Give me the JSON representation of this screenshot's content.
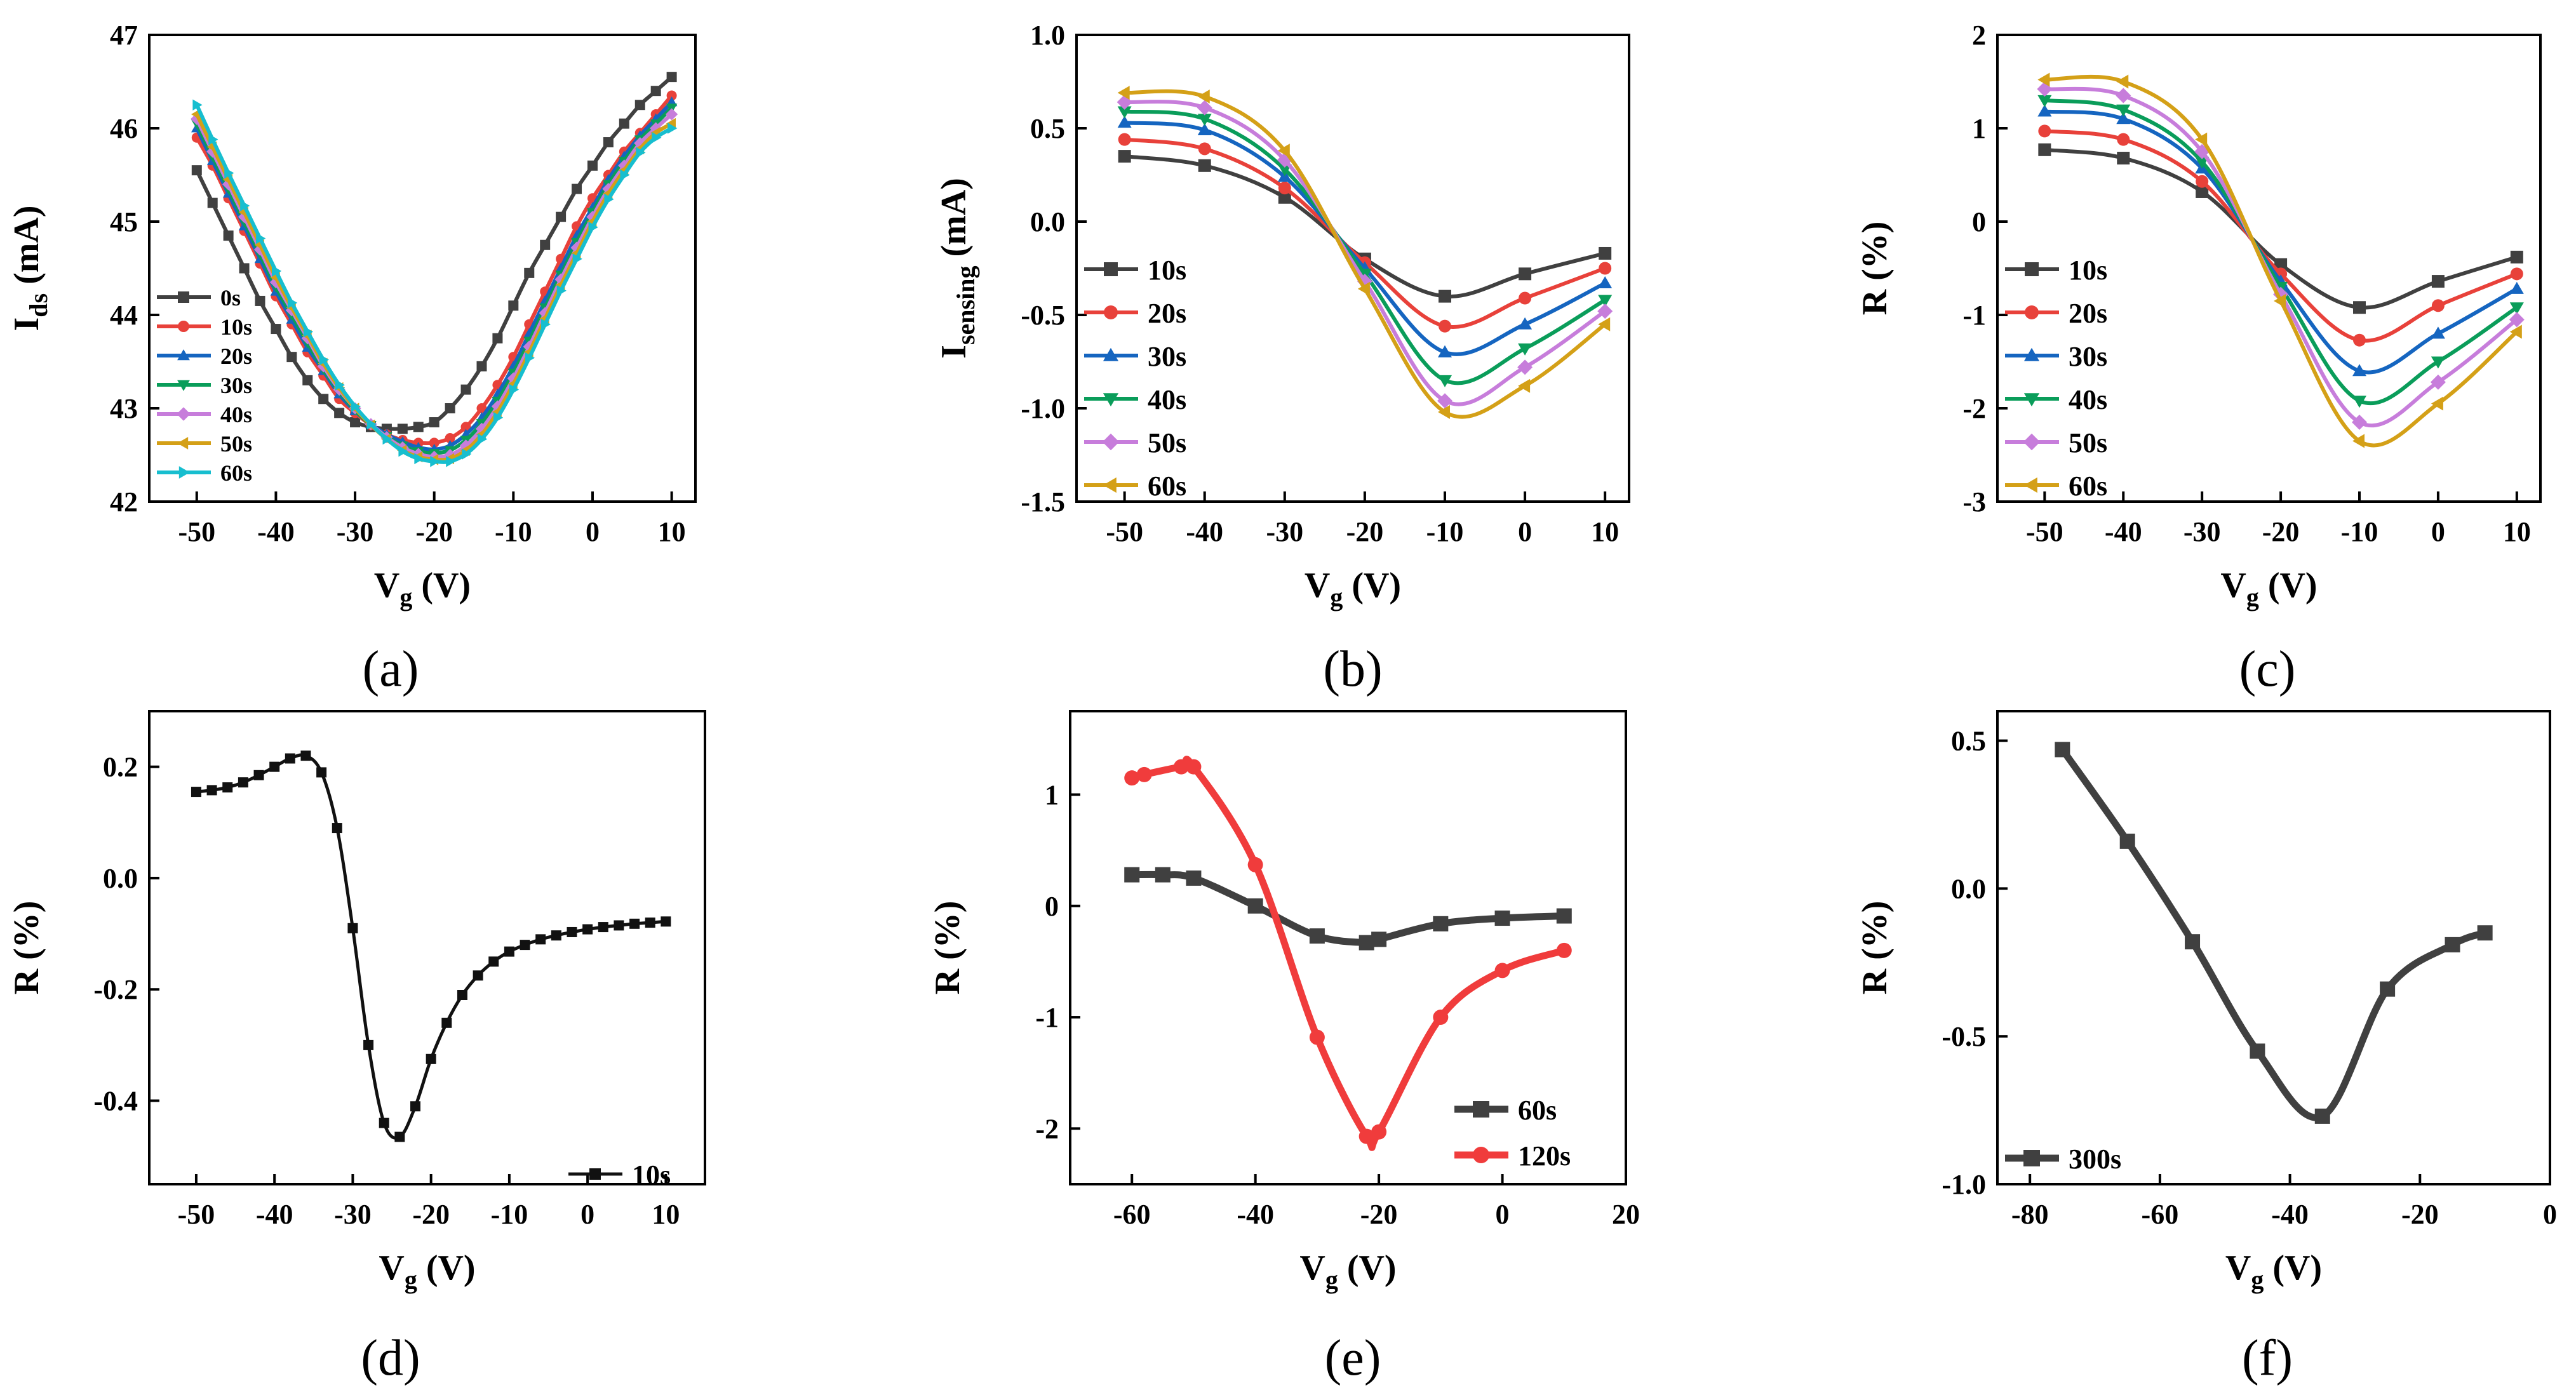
{
  "chart_data": [
    {
      "id": "a",
      "type": "line",
      "panel_label": "(a)",
      "xlabel": "V",
      "xlabel_sub": "g",
      "xlabel_unit": " (V)",
      "ylabel": "I",
      "ylabel_sub": "ds",
      "ylabel_unit": " (mA)",
      "xlim": [
        -56,
        13
      ],
      "ylim": [
        42,
        47
      ],
      "xticks": [
        -50,
        -40,
        -30,
        -20,
        -10,
        0,
        10
      ],
      "yticks": [
        42,
        43,
        44,
        45,
        46,
        47
      ],
      "legend": "left",
      "x": [
        -50,
        -48,
        -46,
        -44,
        -42,
        -40,
        -38,
        -36,
        -34,
        -32,
        -30,
        -28,
        -26,
        -24,
        -22,
        -20,
        -18,
        -16,
        -14,
        -12,
        -10,
        -8,
        -6,
        -4,
        -2,
        0,
        2,
        4,
        6,
        8,
        10
      ],
      "series": [
        {
          "name": "0s",
          "color": "#404040",
          "marker": "square",
          "values": [
            45.55,
            45.2,
            44.85,
            44.5,
            44.15,
            43.85,
            43.55,
            43.3,
            43.1,
            42.95,
            42.85,
            42.8,
            42.78,
            42.78,
            42.8,
            42.85,
            43.0,
            43.2,
            43.45,
            43.75,
            44.1,
            44.45,
            44.75,
            45.05,
            45.35,
            45.6,
            45.85,
            46.05,
            46.25,
            46.4,
            46.55
          ]
        },
        {
          "name": "10s",
          "color": "#e8413a",
          "marker": "circle",
          "values": [
            45.9,
            45.6,
            45.25,
            44.9,
            44.55,
            44.2,
            43.9,
            43.6,
            43.35,
            43.1,
            42.95,
            42.82,
            42.72,
            42.66,
            42.63,
            42.63,
            42.68,
            42.8,
            43.0,
            43.25,
            43.55,
            43.9,
            44.25,
            44.6,
            44.95,
            45.25,
            45.5,
            45.75,
            45.95,
            46.15,
            46.35
          ]
        },
        {
          "name": "20s",
          "color": "#1565c0",
          "marker": "triangle-up",
          "values": [
            46.0,
            45.65,
            45.3,
            44.95,
            44.6,
            44.25,
            43.95,
            43.65,
            43.4,
            43.15,
            42.97,
            42.83,
            42.72,
            42.64,
            42.58,
            42.56,
            42.6,
            42.72,
            42.9,
            43.15,
            43.45,
            43.8,
            44.15,
            44.5,
            44.85,
            45.15,
            45.45,
            45.7,
            45.92,
            46.1,
            46.28
          ]
        },
        {
          "name": "30s",
          "color": "#0a9d5a",
          "marker": "triangle-down",
          "values": [
            46.05,
            45.7,
            45.35,
            45.0,
            44.65,
            44.3,
            44.0,
            43.7,
            43.42,
            43.18,
            42.98,
            42.82,
            42.7,
            42.6,
            42.54,
            42.52,
            42.55,
            42.66,
            42.84,
            43.08,
            43.38,
            43.72,
            44.08,
            44.43,
            44.78,
            45.1,
            45.4,
            45.65,
            45.88,
            46.05,
            46.22
          ]
        },
        {
          "name": "40s",
          "color": "#c77ddb",
          "marker": "diamond",
          "values": [
            46.1,
            45.75,
            45.4,
            45.05,
            44.7,
            44.35,
            44.05,
            43.75,
            43.45,
            43.2,
            43.0,
            42.83,
            42.69,
            42.58,
            42.51,
            42.48,
            42.5,
            42.6,
            42.78,
            43.02,
            43.32,
            43.66,
            44.02,
            44.38,
            44.72,
            45.05,
            45.35,
            45.6,
            45.84,
            46.0,
            46.15
          ]
        },
        {
          "name": "50s",
          "color": "#d4a017",
          "marker": "triangle-left",
          "values": [
            46.15,
            45.8,
            45.45,
            45.1,
            44.75,
            44.4,
            44.08,
            43.78,
            43.48,
            43.22,
            43.0,
            42.82,
            42.67,
            42.55,
            42.48,
            42.45,
            42.46,
            42.55,
            42.72,
            42.96,
            43.26,
            43.6,
            43.96,
            44.32,
            44.66,
            45.0,
            45.3,
            45.55,
            45.78,
            45.95,
            46.05
          ]
        },
        {
          "name": "60s",
          "color": "#17becf",
          "marker": "triangle-right",
          "values": [
            46.25,
            45.88,
            45.52,
            45.17,
            44.82,
            44.47,
            44.13,
            43.82,
            43.52,
            43.25,
            43.02,
            42.83,
            42.67,
            42.54,
            42.46,
            42.43,
            42.43,
            42.51,
            42.67,
            42.9,
            43.2,
            43.54,
            43.9,
            44.26,
            44.6,
            44.94,
            45.24,
            45.5,
            45.74,
            45.9,
            46.0
          ]
        }
      ]
    },
    {
      "id": "b",
      "type": "line",
      "panel_label": "(b)",
      "xlabel": "V",
      "xlabel_sub": "g",
      "xlabel_unit": " (V)",
      "ylabel": "I",
      "ylabel_sub": "sensing",
      "ylabel_unit": " (mA)",
      "xlim": [
        -56,
        13
      ],
      "ylim": [
        -1.5,
        1.0
      ],
      "xticks": [
        -50,
        -40,
        -30,
        -20,
        -10,
        0,
        10
      ],
      "yticks": [
        -1.5,
        -1.0,
        -0.5,
        0.0,
        0.5,
        1.0
      ],
      "ytick_labels": [
        "-1.5",
        "-1.0",
        "-0.5",
        "0.0",
        "0.5",
        "1.0"
      ],
      "legend": "left",
      "x": [
        -50,
        -40,
        -30,
        -20,
        -10,
        0,
        10
      ],
      "series": [
        {
          "name": "10s",
          "color": "#404040",
          "marker": "square",
          "values": [
            0.35,
            0.3,
            0.13,
            -0.2,
            -0.4,
            -0.28,
            -0.17
          ]
        },
        {
          "name": "20s",
          "color": "#e8413a",
          "marker": "circle",
          "values": [
            0.44,
            0.39,
            0.18,
            -0.22,
            -0.56,
            -0.41,
            -0.25
          ]
        },
        {
          "name": "30s",
          "color": "#1565c0",
          "marker": "triangle-up",
          "values": [
            0.53,
            0.49,
            0.24,
            -0.25,
            -0.7,
            -0.55,
            -0.33
          ]
        },
        {
          "name": "40s",
          "color": "#0a9d5a",
          "marker": "triangle-down",
          "values": [
            0.59,
            0.55,
            0.28,
            -0.28,
            -0.85,
            -0.68,
            -0.42
          ]
        },
        {
          "name": "50s",
          "color": "#c77ddb",
          "marker": "diamond",
          "values": [
            0.64,
            0.61,
            0.33,
            -0.32,
            -0.96,
            -0.78,
            -0.48
          ]
        },
        {
          "name": "60s",
          "color": "#d4a017",
          "marker": "triangle-left",
          "values": [
            0.69,
            0.67,
            0.38,
            -0.36,
            -1.02,
            -0.88,
            -0.55
          ]
        }
      ]
    },
    {
      "id": "c",
      "type": "line",
      "panel_label": "(c)",
      "xlabel": "V",
      "xlabel_sub": "g",
      "xlabel_unit": " (V)",
      "ylabel": "R",
      "ylabel_sub": "",
      "ylabel_unit": " (%)",
      "xlim": [
        -56,
        13
      ],
      "ylim": [
        -3,
        2
      ],
      "xticks": [
        -50,
        -40,
        -30,
        -20,
        -10,
        0,
        10
      ],
      "yticks": [
        -3,
        -2,
        -1,
        0,
        1,
        2
      ],
      "legend": "left",
      "x": [
        -50,
        -40,
        -30,
        -20,
        -10,
        0,
        10
      ],
      "series": [
        {
          "name": "10s",
          "color": "#404040",
          "marker": "square",
          "values": [
            0.77,
            0.68,
            0.32,
            -0.46,
            -0.92,
            -0.64,
            -0.38
          ]
        },
        {
          "name": "20s",
          "color": "#e8413a",
          "marker": "circle",
          "values": [
            0.97,
            0.88,
            0.43,
            -0.56,
            -1.27,
            -0.9,
            -0.56
          ]
        },
        {
          "name": "30s",
          "color": "#1565c0",
          "marker": "triangle-up",
          "values": [
            1.18,
            1.1,
            0.57,
            -0.64,
            -1.6,
            -1.2,
            -0.72
          ]
        },
        {
          "name": "40s",
          "color": "#0a9d5a",
          "marker": "triangle-down",
          "values": [
            1.3,
            1.2,
            0.64,
            -0.7,
            -1.92,
            -1.5,
            -0.92
          ]
        },
        {
          "name": "50s",
          "color": "#c77ddb",
          "marker": "diamond",
          "values": [
            1.42,
            1.35,
            0.75,
            -0.78,
            -2.15,
            -1.72,
            -1.05
          ]
        },
        {
          "name": "60s",
          "color": "#d4a017",
          "marker": "triangle-left",
          "values": [
            1.52,
            1.5,
            0.88,
            -0.85,
            -2.35,
            -1.95,
            -1.18
          ]
        }
      ]
    },
    {
      "id": "d",
      "type": "line",
      "panel_label": "(d)",
      "xlabel": "V",
      "xlabel_sub": "g",
      "xlabel_unit": " (V)",
      "ylabel": "R",
      "ylabel_sub": "",
      "ylabel_unit": " (%)",
      "xlim": [
        -56,
        15
      ],
      "ylim": [
        -0.55,
        0.3
      ],
      "xticks": [
        -50,
        -40,
        -30,
        -20,
        -10,
        0,
        10
      ],
      "yticks": [
        -0.4,
        -0.2,
        0.0,
        0.2
      ],
      "ytick_labels": [
        "-0.4",
        "-0.2",
        "0.0",
        "0.2"
      ],
      "legend": "bottom-right",
      "series": [
        {
          "name": "10s",
          "color": "#111111",
          "marker": "square",
          "x": [
            -50,
            -48,
            -46,
            -44,
            -42,
            -40,
            -38,
            -36,
            -34,
            -32,
            -30,
            -28,
            -26,
            -24,
            -22,
            -20,
            -18,
            -16,
            -14,
            -12,
            -10,
            -8,
            -6,
            -4,
            -2,
            0,
            2,
            4,
            6,
            8,
            10
          ],
          "values": [
            0.155,
            0.158,
            0.163,
            0.172,
            0.185,
            0.2,
            0.215,
            0.22,
            0.19,
            0.09,
            -0.09,
            -0.3,
            -0.44,
            -0.465,
            -0.41,
            -0.325,
            -0.26,
            -0.21,
            -0.175,
            -0.15,
            -0.132,
            -0.12,
            -0.11,
            -0.103,
            -0.097,
            -0.092,
            -0.088,
            -0.085,
            -0.082,
            -0.08,
            -0.078
          ]
        }
      ]
    },
    {
      "id": "e",
      "type": "line",
      "panel_label": "(e)",
      "xlabel": "V",
      "xlabel_sub": "g",
      "xlabel_unit": " (V)",
      "ylabel": "R",
      "ylabel_sub": "",
      "ylabel_unit": " (%)",
      "xlim": [
        -70,
        20
      ],
      "ylim": [
        -2.5,
        1.75
      ],
      "xticks": [
        -60,
        -40,
        -20,
        0,
        20
      ],
      "yticks": [
        -2,
        -1,
        0,
        1
      ],
      "legend": "bottom-right",
      "series": [
        {
          "name": "60s",
          "color": "#404040",
          "marker": "square",
          "x": [
            -60,
            -55,
            -50,
            -40,
            -30,
            -22,
            -20,
            -10,
            0,
            10
          ],
          "values": [
            0.28,
            0.28,
            0.25,
            0.0,
            -0.27,
            -0.33,
            -0.3,
            -0.16,
            -0.11,
            -0.09
          ]
        },
        {
          "name": "120s",
          "color": "#f03c3c",
          "marker": "circle",
          "x": [
            -60,
            -58,
            -52,
            -50,
            -40,
            -30,
            -22,
            -20,
            -10,
            0,
            10
          ],
          "values": [
            1.15,
            1.18,
            1.25,
            1.25,
            0.37,
            -1.18,
            -2.07,
            -2.03,
            -1.0,
            -0.58,
            -0.4
          ]
        }
      ]
    },
    {
      "id": "f",
      "type": "line",
      "panel_label": "(f)",
      "xlabel": "V",
      "xlabel_sub": "g",
      "xlabel_unit": " (V)",
      "ylabel": "R",
      "ylabel_sub": "",
      "ylabel_unit": " (%)",
      "xlim": [
        -85,
        0
      ],
      "ylim": [
        -1.0,
        0.6
      ],
      "xticks": [
        -80,
        -60,
        -40,
        -20,
        0
      ],
      "yticks": [
        -1.0,
        -0.5,
        0.0,
        0.5
      ],
      "ytick_labels": [
        "-1.0",
        "-0.5",
        "0.0",
        "0.5"
      ],
      "legend": "bottom-left",
      "series": [
        {
          "name": "300s",
          "color": "#404040",
          "marker": "square",
          "x": [
            -75,
            -65,
            -55,
            -45,
            -35,
            -25,
            -15,
            -10
          ],
          "values": [
            0.47,
            0.16,
            -0.18,
            -0.55,
            -0.77,
            -0.34,
            -0.19,
            -0.15
          ]
        }
      ]
    }
  ]
}
